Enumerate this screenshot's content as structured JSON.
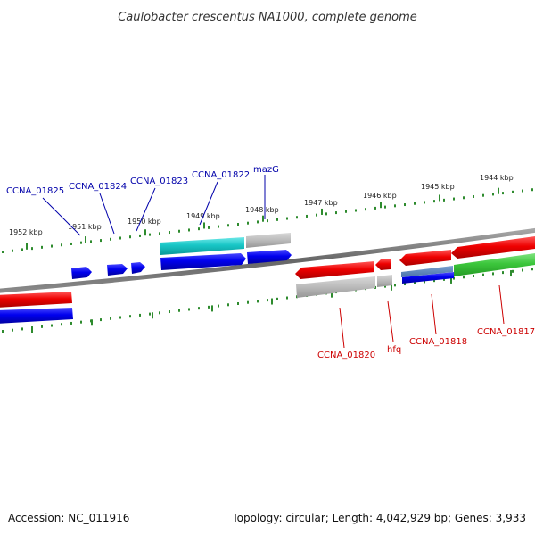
{
  "title": "Caulobacter crescentus NA1000, complete genome",
  "footer": {
    "accession": "Accession: NC_011916",
    "topology": "Topology: circular; Length: 4,042,929 bp; Genes: 3,933"
  },
  "colors": {
    "forward_gene_label": "#0000aa",
    "reverse_gene_label": "#cc0000",
    "backbone": "#707070",
    "tick": "#2e8b2e"
  },
  "scale_labels": [
    "1952 kbp",
    "1951 kbp",
    "1950 kbp",
    "1949 kbp",
    "1948 kbp",
    "1947 kbp",
    "1946 kbp",
    "1945 kbp",
    "1944 kbp"
  ],
  "gene_labels_top": [
    "CCNA_01825",
    "CCNA_01824",
    "CCNA_01823",
    "CCNA_01822",
    "mazG"
  ],
  "gene_labels_bottom": [
    "CCNA_01820",
    "hfq",
    "CCNA_01818",
    "CCNA_01817"
  ]
}
